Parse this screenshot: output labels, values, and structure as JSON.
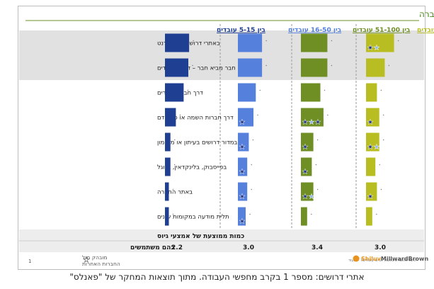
{
  "title": "אמצעי גיוס עובדים לחברה",
  "chart_data": {
    "type": "bar",
    "orientation": "horizontal",
    "title": "אמצעי גיוס עובדים לחברה",
    "categories": [
      "באתרי דרושים באינטרנט",
      "חבר מביא חבר – דרך העובדים",
      "דרך חברים מכרים",
      "דרך חברות השמה או כח אדם",
      "במדור דרושים בעיתון או מקומון",
      "בפייסבוק, בלינקדאין, בגוגל",
      "באתר החברה",
      "תלית מודעה במקומות שונים"
    ],
    "series": [
      {
        "name": "בין 5-15 עובדים",
        "color": "#1f3f93",
        "values": [
          31,
          30,
          24,
          14,
          7,
          7,
          5,
          5
        ],
        "stars": [
          0,
          0,
          0,
          0,
          0,
          0,
          0,
          0
        ]
      },
      {
        "name": "בין 16-50 עובדים",
        "color": "#5580dc",
        "values": [
          31,
          31,
          23,
          20,
          14,
          12,
          12,
          10
        ],
        "stars": [
          0,
          0,
          0,
          1,
          1,
          1,
          1,
          1
        ]
      },
      {
        "name": "בין 51-100 עובדים",
        "color": "#6f8f24",
        "values": [
          34,
          34,
          25,
          29,
          16,
          14,
          16,
          8
        ],
        "stars": [
          0,
          0,
          0,
          3,
          1,
          1,
          2,
          0
        ]
      },
      {
        "name": "מעל 100 עובדים",
        "color": "#b8bd21",
        "values": [
          36,
          24,
          14,
          17,
          17,
          12,
          14,
          8
        ],
        "stars": [
          2,
          0,
          0,
          1,
          2,
          0,
          1,
          0
        ]
      }
    ],
    "highlight_rows": [
      0,
      1
    ],
    "summary_label_line1": "כמות ממוצעת של אמצעי גיוס",
    "summary_label_line2": "בהם משתמשים",
    "summary_values": [
      "2.2",
      "3.0",
      "3.4",
      "3.0"
    ]
  },
  "footer": {
    "legend_line1": "מובהק מול",
    "legend_line2": "החברות האחרות",
    "page_number": "1",
    "note": "כיצד החברה נוהגת לגייס עובדים? – כעוד",
    "logo_text": "Shiluv MillwardBrown",
    "logo_part1": "Shiluv",
    "logo_part2": "MillwardBrown"
  },
  "caption": "אתרי דרושים: מספר 1 בקרב מחפשי העבודה. מתוך תוצאות המחקר של \"פאנלס\""
}
